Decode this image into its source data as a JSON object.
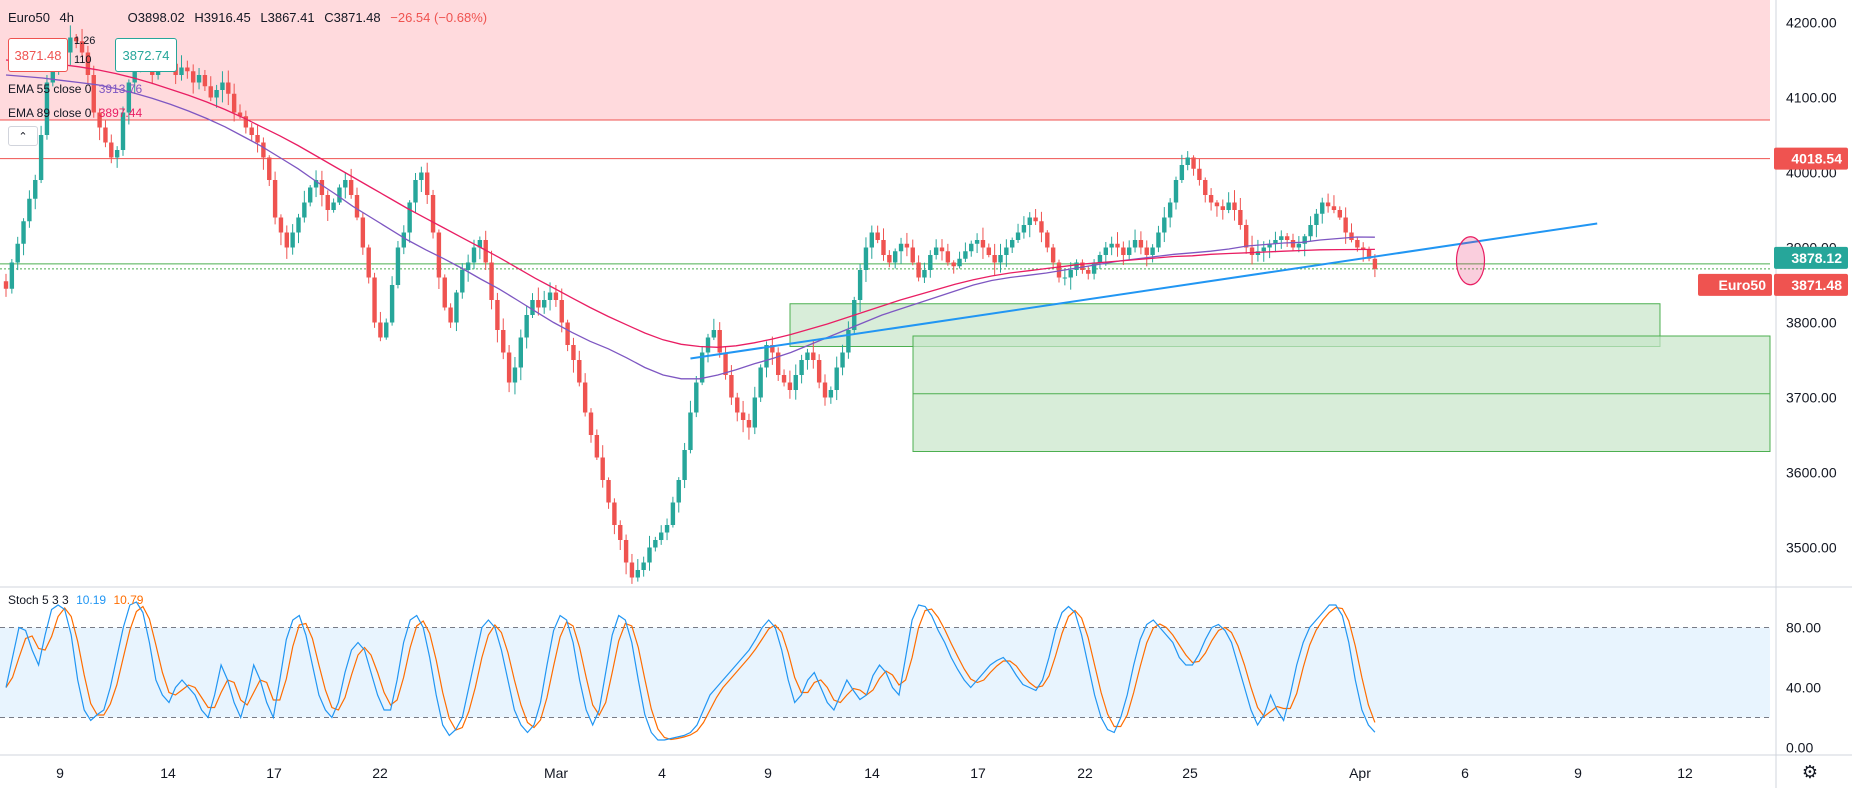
{
  "header": {
    "symbol": "Euro50",
    "interval": "4h",
    "ohlc_open": "O3898.02",
    "ohlc_high": "H3916.45",
    "ohlc_low": "L3867.41",
    "ohlc_close": "C3871.48",
    "change": "−26.54 (−0.68%)"
  },
  "trade": {
    "bid": "3871.48",
    "ask": "3872.74",
    "spread": "1.26",
    "quantity": "110"
  },
  "indicators": {
    "ema55_label": "EMA 55 close 0",
    "ema55_value": "3913.76",
    "ema89_label": "EMA 89 close 0",
    "ema89_value": "3897.44",
    "stoch_label": "Stoch 5 3 3",
    "stoch_k": "10.19",
    "stoch_d": "10.79"
  },
  "colors": {
    "up": "#26a69a",
    "down": "#ef5350",
    "ema55": "#7e57c2",
    "ema89": "#e91e63",
    "trend": "#2196f3",
    "stoch_k": "#2196f3",
    "stoch_d": "#ff6d00",
    "zone_red": "#ffcdd2",
    "zone_green": "#c8e6c9"
  },
  "price_labels": {
    "resistance": "4018.54",
    "green_line": "3878.12",
    "symbol_tag": "Euro50",
    "last_price": "3871.48"
  },
  "chart_data": {
    "type": "candlestick",
    "price_axis": {
      "ticks": [
        "4200.00",
        "4100.00",
        "4000.00",
        "3900.00",
        "3800.00",
        "3700.00",
        "3600.00",
        "3500.00"
      ],
      "ylim": [
        3450,
        4230
      ]
    },
    "time_axis": {
      "ticks": [
        "9",
        "14",
        "17",
        "22",
        "Mar",
        "4",
        "9",
        "14",
        "17",
        "22",
        "25",
        "Apr",
        "6",
        "9",
        "12"
      ]
    },
    "stoch_axis": {
      "ticks": [
        "80.00",
        "40.00",
        "0.00"
      ],
      "ylim": [
        -5,
        105
      ],
      "bands": [
        20,
        80
      ]
    },
    "horizontal_levels": [
      {
        "name": "resistance-zone-bottom",
        "price": 4070
      },
      {
        "name": "resistance",
        "price": 4018.54
      },
      {
        "name": "green-line",
        "price": 3878.12
      },
      {
        "name": "last-price",
        "price": 3871.48
      }
    ],
    "zones": [
      {
        "name": "red-supply-zone",
        "from": 4070,
        "to": 4230
      },
      {
        "name": "green-zone-upper",
        "from": 3768,
        "to": 3825
      },
      {
        "name": "green-zone-lower",
        "from": 3628,
        "to": 3782
      }
    ],
    "trendline": [
      {
        "bar": 117,
        "price": 3752
      },
      {
        "bar": 272,
        "price": 3932
      }
    ],
    "highlight_circle": {
      "bar": 250,
      "price": 3885
    },
    "closes": [
      3845,
      3880,
      3905,
      3935,
      3965,
      3990,
      4050,
      4120,
      4140,
      4150,
      4160,
      4180,
      4175,
      4160,
      4130,
      4080,
      4060,
      4040,
      4020,
      4030,
      4080,
      4120,
      4140,
      4150,
      4145,
      4130,
      4140,
      4150,
      4145,
      4130,
      4140,
      4135,
      4120,
      4130,
      4115,
      4100,
      4110,
      4120,
      4105,
      4080,
      4075,
      4060,
      4050,
      4040,
      4020,
      3990,
      3940,
      3920,
      3900,
      3920,
      3940,
      3960,
      3980,
      3990,
      3970,
      3950,
      3960,
      3980,
      3990,
      3970,
      3940,
      3900,
      3860,
      3800,
      3780,
      3800,
      3850,
      3900,
      3920,
      3960,
      3990,
      4000,
      3970,
      3920,
      3860,
      3820,
      3800,
      3840,
      3870,
      3880,
      3900,
      3910,
      3880,
      3830,
      3790,
      3760,
      3720,
      3740,
      3780,
      3810,
      3830,
      3820,
      3830,
      3840,
      3830,
      3800,
      3770,
      3750,
      3720,
      3680,
      3650,
      3620,
      3590,
      3560,
      3530,
      3510,
      3480,
      3460,
      3470,
      3480,
      3500,
      3510,
      3520,
      3530,
      3560,
      3590,
      3630,
      3680,
      3720,
      3760,
      3780,
      3790,
      3760,
      3730,
      3700,
      3680,
      3670,
      3660,
      3700,
      3740,
      3770,
      3760,
      3730,
      3720,
      3710,
      3730,
      3750,
      3760,
      3750,
      3720,
      3700,
      3710,
      3740,
      3760,
      3790,
      3830,
      3870,
      3900,
      3920,
      3910,
      3890,
      3880,
      3895,
      3905,
      3900,
      3880,
      3860,
      3870,
      3890,
      3900,
      3895,
      3880,
      3875,
      3885,
      3895,
      3905,
      3910,
      3900,
      3890,
      3880,
      3890,
      3900,
      3910,
      3920,
      3930,
      3940,
      3935,
      3920,
      3900,
      3880,
      3860,
      3860,
      3870,
      3880,
      3870,
      3865,
      3880,
      3890,
      3900,
      3905,
      3900,
      3890,
      3900,
      3910,
      3900,
      3890,
      3900,
      3920,
      3940,
      3960,
      3990,
      4010,
      4020,
      4005,
      3990,
      3970,
      3960,
      3955,
      3950,
      3960,
      3950,
      3930,
      3900,
      3890,
      3895,
      3900,
      3905,
      3910,
      3915,
      3910,
      3900,
      3905,
      3915,
      3930,
      3945,
      3960,
      3955,
      3950,
      3940,
      3920,
      3910,
      3900,
      3898,
      3885,
      3871.48
    ],
    "ema55": [
      4130,
      4128,
      4126,
      4123,
      4120,
      4117,
      4112,
      4106,
      4099,
      4091,
      4082,
      4072,
      4061,
      4048,
      4035,
      4020,
      4005,
      3988,
      3972,
      3955,
      3940,
      3925,
      3910,
      3897,
      3885,
      3872,
      3858,
      3845,
      3830,
      3815,
      3800,
      3787,
      3775,
      3765,
      3753,
      3740,
      3730,
      3725,
      3725,
      3730,
      3737,
      3745,
      3752,
      3760,
      3770,
      3780,
      3790,
      3800,
      3810,
      3818,
      3826,
      3834,
      3842,
      3850,
      3856,
      3860,
      3863,
      3866,
      3870,
      3874,
      3878,
      3882,
      3885,
      3888,
      3891,
      3893,
      3895,
      3898,
      3902,
      3904,
      3906,
      3907,
      3910,
      3912,
      3914,
      3913.76
    ],
    "ema89": [
      4150,
      4148,
      4146,
      4144,
      4141,
      4137,
      4132,
      4126,
      4119,
      4111,
      4103,
      4094,
      4084,
      4073,
      4061,
      4049,
      4036,
      4022,
      4008,
      3994,
      3980,
      3966,
      3952,
      3939,
      3926,
      3913,
      3900,
      3887,
      3873,
      3859,
      3846,
      3833,
      3820,
      3808,
      3797,
      3786,
      3777,
      3771,
      3768,
      3767,
      3769,
      3773,
      3778,
      3784,
      3791,
      3798,
      3806,
      3814,
      3822,
      3830,
      3837,
      3844,
      3851,
      3857,
      3862,
      3866,
      3869,
      3872,
      3875,
      3878,
      3880,
      3882,
      3884,
      3886,
      3888,
      3889,
      3891,
      3892,
      3893,
      3894,
      3895,
      3896,
      3897,
      3897.2,
      3897.3,
      3897.44
    ],
    "stoch_k": [
      40,
      60,
      80,
      78,
      65,
      55,
      75,
      92,
      95,
      92,
      75,
      45,
      25,
      18,
      22,
      25,
      40,
      60,
      80,
      95,
      97,
      90,
      70,
      45,
      35,
      30,
      40,
      45,
      40,
      35,
      25,
      20,
      35,
      55,
      45,
      30,
      20,
      35,
      55,
      45,
      30,
      20,
      45,
      72,
      85,
      88,
      75,
      55,
      35,
      25,
      20,
      30,
      50,
      65,
      70,
      65,
      50,
      35,
      25,
      25,
      45,
      70,
      85,
      88,
      80,
      60,
      35,
      15,
      8,
      12,
      20,
      40,
      60,
      80,
      85,
      80,
      65,
      45,
      25,
      15,
      10,
      15,
      30,
      55,
      78,
      88,
      85,
      70,
      45,
      25,
      15,
      25,
      50,
      75,
      88,
      85,
      70,
      45,
      22,
      10,
      5,
      5,
      6,
      7,
      8,
      10,
      15,
      25,
      35,
      40,
      45,
      50,
      55,
      60,
      65,
      72,
      80,
      85,
      80,
      65,
      45,
      30,
      35,
      45,
      50,
      40,
      30,
      25,
      35,
      45,
      38,
      32,
      35,
      48,
      55,
      50,
      40,
      35,
      60,
      85,
      95,
      94,
      88,
      78,
      70,
      60,
      52,
      45,
      40,
      45,
      50,
      55,
      58,
      60,
      55,
      48,
      42,
      40,
      38,
      45,
      60,
      78,
      90,
      94,
      90,
      75,
      55,
      35,
      20,
      12,
      10,
      20,
      35,
      55,
      72,
      82,
      85,
      80,
      75,
      70,
      60,
      55,
      55,
      62,
      72,
      80,
      82,
      78,
      70,
      55,
      40,
      25,
      15,
      22,
      35,
      25,
      18,
      35,
      55,
      70,
      80,
      85,
      90,
      95,
      95,
      88,
      70,
      45,
      25,
      15,
      10.19
    ]
  }
}
